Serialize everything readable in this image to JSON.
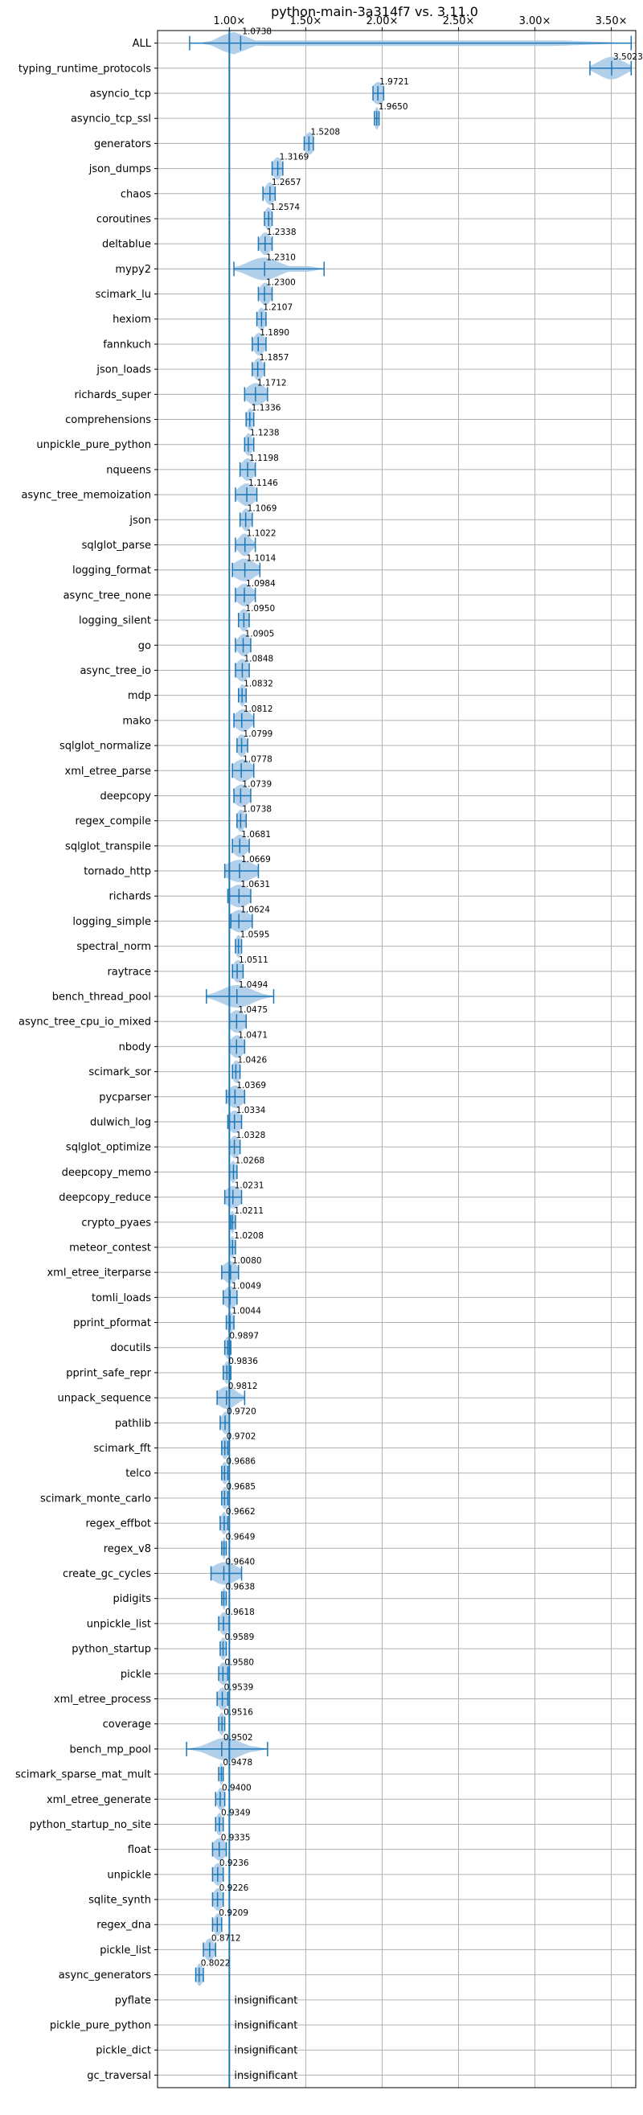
{
  "chart_data": {
    "type": "violin",
    "title": "python-main-3a314f7 vs. 3.11.0",
    "xlabel": "",
    "ylabel": "",
    "x_ticks": [
      "1.00×",
      "1.50×",
      "2.00×",
      "2.50×",
      "3.00×",
      "3.50×"
    ],
    "x_tick_values": [
      1.0,
      1.5,
      2.0,
      2.5,
      3.0,
      3.5
    ],
    "xlim": [
      0.53,
      3.66
    ],
    "reference_line": 1.0,
    "grid": true,
    "insignificant_label": "insignificant",
    "colors": {
      "violin": "#a6c8e8",
      "line": "#1f77b4",
      "grid": "#b0b0b0",
      "ref": "#1f77b4"
    },
    "benchmarks": [
      {
        "name": "ALL",
        "median": 1.0738,
        "label": "1.0738",
        "min": 0.74,
        "max": 3.63,
        "q1": 0.97,
        "q3": 1.08,
        "spread": 0.08
      },
      {
        "name": "typing_runtime_protocols",
        "median": 3.5023,
        "label": "3.5023",
        "min": 3.36,
        "max": 3.63,
        "q1": 3.45,
        "q3": 3.55,
        "spread": 0.08
      },
      {
        "name": "asyncio_tcp",
        "median": 1.9721,
        "label": "1.9721",
        "min": 1.94,
        "max": 2.01,
        "q1": 1.96,
        "q3": 1.99,
        "spread": 0.04
      },
      {
        "name": "asyncio_tcp_ssl",
        "median": 1.965,
        "label": "1.9650",
        "min": 1.95,
        "max": 1.98,
        "q1": 1.96,
        "q3": 1.97,
        "spread": 0.015
      },
      {
        "name": "generators",
        "median": 1.5208,
        "label": "1.5208",
        "min": 1.49,
        "max": 1.55,
        "q1": 1.51,
        "q3": 1.54,
        "spread": 0.03
      },
      {
        "name": "json_dumps",
        "median": 1.3169,
        "label": "1.3169",
        "min": 1.28,
        "max": 1.35,
        "q1": 1.3,
        "q3": 1.33,
        "spread": 0.03
      },
      {
        "name": "chaos",
        "median": 1.2657,
        "label": "1.2657",
        "min": 1.22,
        "max": 1.3,
        "q1": 1.24,
        "q3": 1.29,
        "spread": 0.03
      },
      {
        "name": "coroutines",
        "median": 1.2574,
        "label": "1.2574",
        "min": 1.23,
        "max": 1.28,
        "q1": 1.24,
        "q3": 1.27,
        "spread": 0.025
      },
      {
        "name": "deltablue",
        "median": 1.2338,
        "label": "1.2338",
        "min": 1.19,
        "max": 1.28,
        "q1": 1.21,
        "q3": 1.26,
        "spread": 0.035
      },
      {
        "name": "mypy2",
        "median": 1.231,
        "label": "1.2310",
        "min": 1.03,
        "max": 1.62,
        "q1": 1.1,
        "q3": 1.35,
        "spread": 0.1
      },
      {
        "name": "scimark_lu",
        "median": 1.23,
        "label": "1.2300",
        "min": 1.19,
        "max": 1.28,
        "q1": 1.21,
        "q3": 1.26,
        "spread": 0.035
      },
      {
        "name": "hexiom",
        "median": 1.2107,
        "label": "1.2107",
        "min": 1.18,
        "max": 1.24,
        "q1": 1.19,
        "q3": 1.23,
        "spread": 0.025
      },
      {
        "name": "fannkuch",
        "median": 1.189,
        "label": "1.1890",
        "min": 1.15,
        "max": 1.24,
        "q1": 1.17,
        "q3": 1.22,
        "spread": 0.035
      },
      {
        "name": "json_loads",
        "median": 1.1857,
        "label": "1.1857",
        "min": 1.15,
        "max": 1.23,
        "q1": 1.17,
        "q3": 1.21,
        "spread": 0.03
      },
      {
        "name": "richards_super",
        "median": 1.1712,
        "label": "1.1712",
        "min": 1.1,
        "max": 1.25,
        "q1": 1.14,
        "q3": 1.21,
        "spread": 0.06
      },
      {
        "name": "comprehensions",
        "median": 1.1336,
        "label": "1.1336",
        "min": 1.11,
        "max": 1.16,
        "q1": 1.12,
        "q3": 1.15,
        "spread": 0.02
      },
      {
        "name": "unpickle_pure_python",
        "median": 1.1238,
        "label": "1.1238",
        "min": 1.1,
        "max": 1.16,
        "q1": 1.11,
        "q3": 1.14,
        "spread": 0.025
      },
      {
        "name": "nqueens",
        "median": 1.1198,
        "label": "1.1198",
        "min": 1.07,
        "max": 1.17,
        "q1": 1.09,
        "q3": 1.15,
        "spread": 0.04
      },
      {
        "name": "async_tree_memoization",
        "median": 1.1146,
        "label": "1.1146",
        "min": 1.04,
        "max": 1.18,
        "q1": 1.08,
        "q3": 1.15,
        "spread": 0.055
      },
      {
        "name": "json",
        "median": 1.1069,
        "label": "1.1069",
        "min": 1.07,
        "max": 1.15,
        "q1": 1.09,
        "q3": 1.13,
        "spread": 0.03
      },
      {
        "name": "sqlglot_parse",
        "median": 1.1022,
        "label": "1.1022",
        "min": 1.04,
        "max": 1.17,
        "q1": 1.07,
        "q3": 1.13,
        "spread": 0.04
      },
      {
        "name": "logging_format",
        "median": 1.1014,
        "label": "1.1014",
        "min": 1.02,
        "max": 1.2,
        "q1": 1.06,
        "q3": 1.14,
        "spread": 0.07
      },
      {
        "name": "async_tree_none",
        "median": 1.0984,
        "label": "1.0984",
        "min": 1.04,
        "max": 1.17,
        "q1": 1.07,
        "q3": 1.13,
        "spread": 0.05
      },
      {
        "name": "logging_silent",
        "median": 1.095,
        "label": "1.0950",
        "min": 1.06,
        "max": 1.13,
        "q1": 1.08,
        "q3": 1.11,
        "spread": 0.03
      },
      {
        "name": "go",
        "median": 1.0905,
        "label": "1.0905",
        "min": 1.04,
        "max": 1.14,
        "q1": 1.07,
        "q3": 1.12,
        "spread": 0.04
      },
      {
        "name": "async_tree_io",
        "median": 1.0848,
        "label": "1.0848",
        "min": 1.04,
        "max": 1.13,
        "q1": 1.06,
        "q3": 1.11,
        "spread": 0.04
      },
      {
        "name": "mdp",
        "median": 1.0832,
        "label": "1.0832",
        "min": 1.06,
        "max": 1.11,
        "q1": 1.07,
        "q3": 1.1,
        "spread": 0.02
      },
      {
        "name": "mako",
        "median": 1.0812,
        "label": "1.0812",
        "min": 1.03,
        "max": 1.16,
        "q1": 1.06,
        "q3": 1.12,
        "spread": 0.05
      },
      {
        "name": "sqlglot_normalize",
        "median": 1.0799,
        "label": "1.0799",
        "min": 1.05,
        "max": 1.12,
        "q1": 1.06,
        "q3": 1.1,
        "spread": 0.03
      },
      {
        "name": "xml_etree_parse",
        "median": 1.0778,
        "label": "1.0778",
        "min": 1.02,
        "max": 1.16,
        "q1": 1.05,
        "q3": 1.12,
        "spread": 0.06
      },
      {
        "name": "deepcopy",
        "median": 1.0739,
        "label": "1.0739",
        "min": 1.03,
        "max": 1.14,
        "q1": 1.05,
        "q3": 1.11,
        "spread": 0.05
      },
      {
        "name": "regex_compile",
        "median": 1.0738,
        "label": "1.0738",
        "min": 1.05,
        "max": 1.11,
        "q1": 1.06,
        "q3": 1.09,
        "spread": 0.025
      },
      {
        "name": "sqlglot_transpile",
        "median": 1.0681,
        "label": "1.0681",
        "min": 1.02,
        "max": 1.13,
        "q1": 1.04,
        "q3": 1.1,
        "spread": 0.045
      },
      {
        "name": "tornado_http",
        "median": 1.0669,
        "label": "1.0669",
        "min": 0.97,
        "max": 1.19,
        "q1": 1.02,
        "q3": 1.12,
        "spread": 0.09
      },
      {
        "name": "richards",
        "median": 1.0631,
        "label": "1.0631",
        "min": 0.99,
        "max": 1.14,
        "q1": 1.03,
        "q3": 1.1,
        "spread": 0.07
      },
      {
        "name": "logging_simple",
        "median": 1.0624,
        "label": "1.0624",
        "min": 1.01,
        "max": 1.15,
        "q1": 1.04,
        "q3": 1.1,
        "spread": 0.065
      },
      {
        "name": "spectral_norm",
        "median": 1.0595,
        "label": "1.0595",
        "min": 1.04,
        "max": 1.08,
        "q1": 1.05,
        "q3": 1.07,
        "spread": 0.02
      },
      {
        "name": "raytrace",
        "median": 1.0511,
        "label": "1.0511",
        "min": 1.02,
        "max": 1.09,
        "q1": 1.04,
        "q3": 1.07,
        "spread": 0.03
      },
      {
        "name": "bench_thread_pool",
        "median": 1.0494,
        "label": "1.0494",
        "min": 0.85,
        "max": 1.29,
        "q1": 0.95,
        "q3": 1.15,
        "spread": 0.1
      },
      {
        "name": "async_tree_cpu_io_mixed",
        "median": 1.0475,
        "label": "1.0475",
        "min": 1.0,
        "max": 1.11,
        "q1": 1.02,
        "q3": 1.08,
        "spread": 0.05
      },
      {
        "name": "nbody",
        "median": 1.0471,
        "label": "1.0471",
        "min": 1.0,
        "max": 1.1,
        "q1": 1.02,
        "q3": 1.08,
        "spread": 0.045
      },
      {
        "name": "scimark_sor",
        "median": 1.0426,
        "label": "1.0426",
        "min": 1.02,
        "max": 1.07,
        "q1": 1.03,
        "q3": 1.06,
        "spread": 0.025
      },
      {
        "name": "pycparser",
        "median": 1.0369,
        "label": "1.0369",
        "min": 0.98,
        "max": 1.1,
        "q1": 1.01,
        "q3": 1.07,
        "spread": 0.05
      },
      {
        "name": "dulwich_log",
        "median": 1.0334,
        "label": "1.0334",
        "min": 0.99,
        "max": 1.08,
        "q1": 1.01,
        "q3": 1.06,
        "spread": 0.04
      },
      {
        "name": "sqlglot_optimize",
        "median": 1.0328,
        "label": "1.0328",
        "min": 1.0,
        "max": 1.07,
        "q1": 1.02,
        "q3": 1.05,
        "spread": 0.03
      },
      {
        "name": "deepcopy_memo",
        "median": 1.0268,
        "label": "1.0268",
        "min": 1.0,
        "max": 1.05,
        "q1": 1.01,
        "q3": 1.04,
        "spread": 0.02
      },
      {
        "name": "deepcopy_reduce",
        "median": 1.0231,
        "label": "1.0231",
        "min": 0.97,
        "max": 1.08,
        "q1": 1.0,
        "q3": 1.05,
        "spread": 0.05
      },
      {
        "name": "crypto_pyaes",
        "median": 1.0211,
        "label": "1.0211",
        "min": 1.01,
        "max": 1.04,
        "q1": 1.01,
        "q3": 1.03,
        "spread": 0.015
      },
      {
        "name": "meteor_contest",
        "median": 1.0208,
        "label": "1.0208",
        "min": 1.0,
        "max": 1.04,
        "q1": 1.01,
        "q3": 1.03,
        "spread": 0.015
      },
      {
        "name": "xml_etree_iterparse",
        "median": 1.008,
        "label": "1.0080",
        "min": 0.95,
        "max": 1.06,
        "q1": 0.98,
        "q3": 1.03,
        "spread": 0.045
      },
      {
        "name": "tomli_loads",
        "median": 1.0049,
        "label": "1.0049",
        "min": 0.96,
        "max": 1.05,
        "q1": 0.98,
        "q3": 1.03,
        "spread": 0.04
      },
      {
        "name": "pprint_pformat",
        "median": 1.0044,
        "label": "1.0044",
        "min": 0.98,
        "max": 1.03,
        "q1": 0.99,
        "q3": 1.02,
        "spread": 0.02
      },
      {
        "name": "docutils",
        "median": 0.9897,
        "label": "0.9897",
        "min": 0.97,
        "max": 1.01,
        "q1": 0.98,
        "q3": 1.0,
        "spread": 0.02
      },
      {
        "name": "pprint_safe_repr",
        "median": 0.9836,
        "label": "0.9836",
        "min": 0.96,
        "max": 1.01,
        "q1": 0.97,
        "q3": 1.0,
        "spread": 0.02
      },
      {
        "name": "unpack_sequence",
        "median": 0.9812,
        "label": "0.9812",
        "min": 0.92,
        "max": 1.1,
        "q1": 0.95,
        "q3": 1.02,
        "spread": 0.06
      },
      {
        "name": "pathlib",
        "median": 0.972,
        "label": "0.9720",
        "min": 0.94,
        "max": 1.0,
        "q1": 0.96,
        "q3": 0.99,
        "spread": 0.025
      },
      {
        "name": "scimark_fft",
        "median": 0.9702,
        "label": "0.9702",
        "min": 0.95,
        "max": 0.99,
        "q1": 0.96,
        "q3": 0.98,
        "spread": 0.02
      },
      {
        "name": "telco",
        "median": 0.9686,
        "label": "0.9686",
        "min": 0.95,
        "max": 0.99,
        "q1": 0.96,
        "q3": 0.98,
        "spread": 0.02
      },
      {
        "name": "scimark_monte_carlo",
        "median": 0.9685,
        "label": "0.9685",
        "min": 0.95,
        "max": 0.99,
        "q1": 0.96,
        "q3": 0.98,
        "spread": 0.02
      },
      {
        "name": "regex_effbot",
        "median": 0.9662,
        "label": "0.9662",
        "min": 0.94,
        "max": 0.99,
        "q1": 0.95,
        "q3": 0.98,
        "spread": 0.02
      },
      {
        "name": "regex_v8",
        "median": 0.9649,
        "label": "0.9649",
        "min": 0.95,
        "max": 0.98,
        "q1": 0.96,
        "q3": 0.97,
        "spread": 0.01
      },
      {
        "name": "create_gc_cycles",
        "median": 0.964,
        "label": "0.9640",
        "min": 0.88,
        "max": 1.08,
        "q1": 0.92,
        "q3": 1.02,
        "spread": 0.08
      },
      {
        "name": "pidigits",
        "median": 0.9638,
        "label": "0.9638",
        "min": 0.95,
        "max": 0.98,
        "q1": 0.96,
        "q3": 0.97,
        "spread": 0.012
      },
      {
        "name": "unpickle_list",
        "median": 0.9618,
        "label": "0.9618",
        "min": 0.93,
        "max": 1.0,
        "q1": 0.95,
        "q3": 0.98,
        "spread": 0.03
      },
      {
        "name": "python_startup",
        "median": 0.9589,
        "label": "0.9589",
        "min": 0.94,
        "max": 0.98,
        "q1": 0.95,
        "q3": 0.97,
        "spread": 0.02
      },
      {
        "name": "pickle",
        "median": 0.958,
        "label": "0.9580",
        "min": 0.93,
        "max": 0.99,
        "q1": 0.94,
        "q3": 0.98,
        "spread": 0.03
      },
      {
        "name": "xml_etree_process",
        "median": 0.9539,
        "label": "0.9539",
        "min": 0.92,
        "max": 0.99,
        "q1": 0.94,
        "q3": 0.97,
        "spread": 0.03
      },
      {
        "name": "coverage",
        "median": 0.9516,
        "label": "0.9516",
        "min": 0.93,
        "max": 0.97,
        "q1": 0.94,
        "q3": 0.96,
        "spread": 0.02
      },
      {
        "name": "bench_mp_pool",
        "median": 0.9502,
        "label": "0.9502",
        "min": 0.72,
        "max": 1.25,
        "q1": 0.85,
        "q3": 1.1,
        "spread": 0.1
      },
      {
        "name": "scimark_sparse_mat_mult",
        "median": 0.9478,
        "label": "0.9478",
        "min": 0.93,
        "max": 0.96,
        "q1": 0.94,
        "q3": 0.955,
        "spread": 0.012
      },
      {
        "name": "xml_etree_generate",
        "median": 0.94,
        "label": "0.9400",
        "min": 0.91,
        "max": 0.97,
        "q1": 0.93,
        "q3": 0.96,
        "spread": 0.025
      },
      {
        "name": "python_startup_no_site",
        "median": 0.9349,
        "label": "0.9349",
        "min": 0.91,
        "max": 0.96,
        "q1": 0.92,
        "q3": 0.95,
        "spread": 0.02
      },
      {
        "name": "float",
        "median": 0.9335,
        "label": "0.9335",
        "min": 0.89,
        "max": 0.98,
        "q1": 0.91,
        "q3": 0.96,
        "spread": 0.04
      },
      {
        "name": "unpickle",
        "median": 0.9236,
        "label": "0.9236",
        "min": 0.89,
        "max": 0.96,
        "q1": 0.91,
        "q3": 0.94,
        "spread": 0.03
      },
      {
        "name": "sqlite_synth",
        "median": 0.9226,
        "label": "0.9226",
        "min": 0.89,
        "max": 0.96,
        "q1": 0.91,
        "q3": 0.94,
        "spread": 0.03
      },
      {
        "name": "regex_dna",
        "median": 0.9209,
        "label": "0.9209",
        "min": 0.89,
        "max": 0.95,
        "q1": 0.91,
        "q3": 0.94,
        "spread": 0.025
      },
      {
        "name": "pickle_list",
        "median": 0.8712,
        "label": "0.8712",
        "min": 0.83,
        "max": 0.91,
        "q1": 0.85,
        "q3": 0.89,
        "spread": 0.03
      },
      {
        "name": "async_generators",
        "median": 0.8022,
        "label": "0.8022",
        "min": 0.78,
        "max": 0.83,
        "q1": 0.79,
        "q3": 0.82,
        "spread": 0.02
      },
      {
        "name": "pyflate",
        "median": null,
        "label": "",
        "insignificant": true
      },
      {
        "name": "pickle_pure_python",
        "median": null,
        "label": "",
        "insignificant": true
      },
      {
        "name": "pickle_dict",
        "median": null,
        "label": "",
        "insignificant": true
      },
      {
        "name": "gc_traversal",
        "median": null,
        "label": "",
        "insignificant": true
      }
    ]
  }
}
